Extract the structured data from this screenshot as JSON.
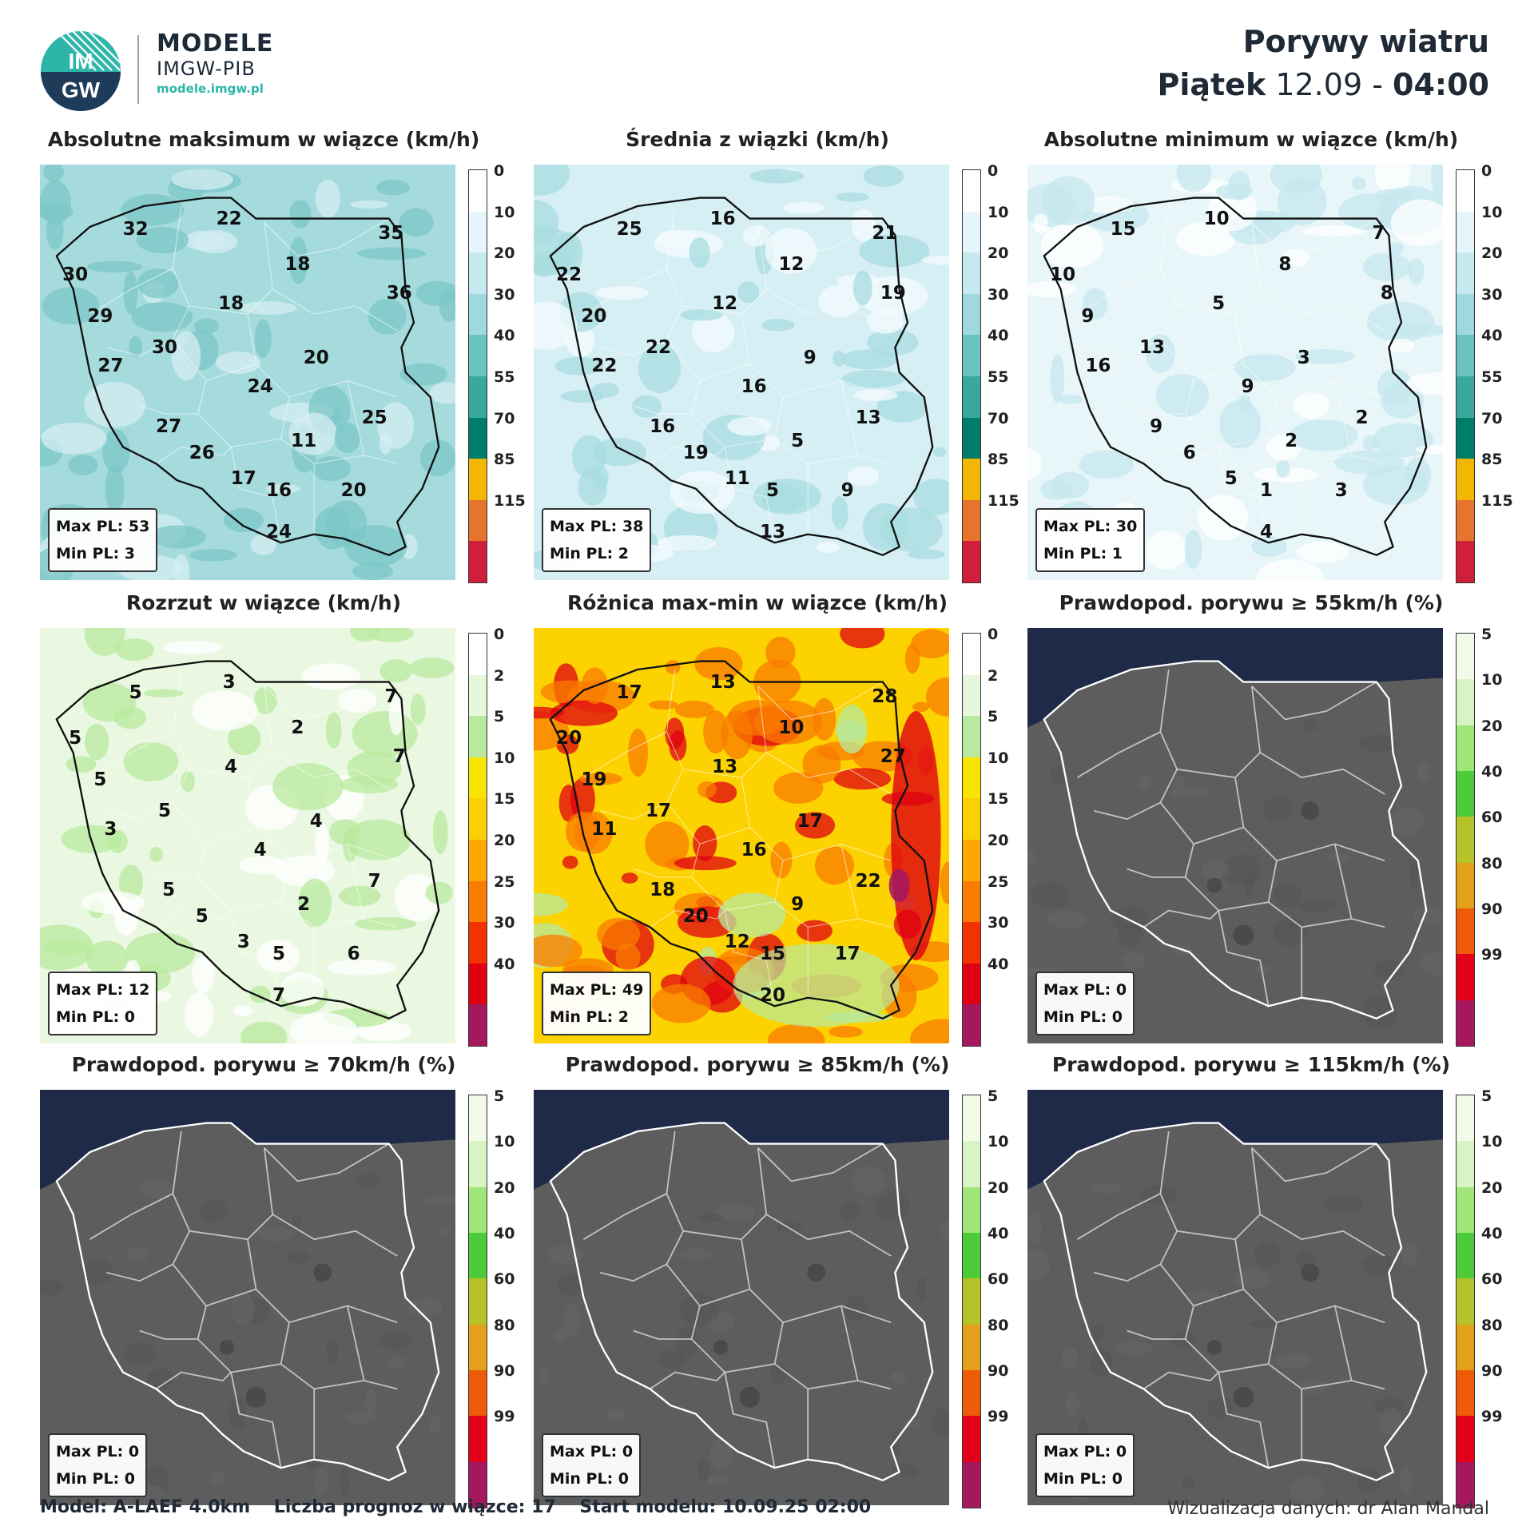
{
  "header": {
    "brand_title": "MODELE",
    "brand_subtitle": "IMGW-PIB",
    "brand_url": "modele.imgw.pl",
    "logo_text": "IMGW",
    "title": "Porywy wiatru",
    "day": "Piątek",
    "date": "12.09",
    "separator": "-",
    "time": "04:00"
  },
  "scales": {
    "wind": {
      "labels": [
        "0",
        "10",
        "20",
        "30",
        "40",
        "55",
        "70",
        "85",
        "115"
      ],
      "colors": [
        "#ffffff",
        "#e6f5fb",
        "#c6e9f0",
        "#9fd8de",
        "#6bc3c0",
        "#39a89d",
        "#007d6a",
        "#f2b705",
        "#e6742d",
        "#cf1f3b"
      ]
    },
    "spread": {
      "labels": [
        "0",
        "2",
        "5",
        "10",
        "15",
        "20",
        "25",
        "30",
        "40"
      ],
      "colors": [
        "#ffffff",
        "#e7f7dc",
        "#b8e99e",
        "#f7e400",
        "#fbd000",
        "#fca800",
        "#f97b00",
        "#f23200",
        "#e00012",
        "#a5185e"
      ]
    },
    "prob": {
      "labels": [
        "5",
        "10",
        "20",
        "40",
        "60",
        "80",
        "90",
        "99"
      ],
      "colors": [
        "#f1fbe8",
        "#d8f3c4",
        "#9fe679",
        "#4ecb3a",
        "#b5c229",
        "#e3a11b",
        "#ee5c0a",
        "#e5001a",
        "#a5185e"
      ]
    }
  },
  "panels": [
    {
      "title": "Absolutne maksimum w wiązce (km/h)",
      "scale": "wind",
      "style": "wind",
      "base": "#a6dbdd",
      "blobs": "#7cc7c7",
      "blobs2": "#d4eef2",
      "max": "Max PL: 53",
      "min": "Min PL: 3",
      "values": [
        {
          "v": "22",
          "x": 0.455,
          "y": 0.13
        },
        {
          "v": "32",
          "x": 0.23,
          "y": 0.155
        },
        {
          "v": "35",
          "x": 0.845,
          "y": 0.165
        },
        {
          "v": "30",
          "x": 0.085,
          "y": 0.265
        },
        {
          "v": "18",
          "x": 0.62,
          "y": 0.24
        },
        {
          "v": "36",
          "x": 0.865,
          "y": 0.31
        },
        {
          "v": "29",
          "x": 0.145,
          "y": 0.365
        },
        {
          "v": "18",
          "x": 0.46,
          "y": 0.335
        },
        {
          "v": "30",
          "x": 0.3,
          "y": 0.44
        },
        {
          "v": "20",
          "x": 0.665,
          "y": 0.465
        },
        {
          "v": "27",
          "x": 0.17,
          "y": 0.485
        },
        {
          "v": "24",
          "x": 0.53,
          "y": 0.535
        },
        {
          "v": "25",
          "x": 0.805,
          "y": 0.61
        },
        {
          "v": "27",
          "x": 0.31,
          "y": 0.63
        },
        {
          "v": "11",
          "x": 0.635,
          "y": 0.665
        },
        {
          "v": "26",
          "x": 0.39,
          "y": 0.695
        },
        {
          "v": "17",
          "x": 0.49,
          "y": 0.755
        },
        {
          "v": "16",
          "x": 0.575,
          "y": 0.785
        },
        {
          "v": "20",
          "x": 0.755,
          "y": 0.785
        },
        {
          "v": "24",
          "x": 0.575,
          "y": 0.885
        }
      ]
    },
    {
      "title": "Średnia z wiązki (km/h)",
      "scale": "wind",
      "style": "wind",
      "base": "#d6eff5",
      "blobs": "#a8dcdf",
      "blobs2": "#f4fbfd",
      "max": "Max PL: 38",
      "min": "Min PL: 2",
      "values": [
        {
          "v": "16",
          "x": 0.455,
          "y": 0.13
        },
        {
          "v": "25",
          "x": 0.23,
          "y": 0.155
        },
        {
          "v": "21",
          "x": 0.845,
          "y": 0.165
        },
        {
          "v": "22",
          "x": 0.085,
          "y": 0.265
        },
        {
          "v": "12",
          "x": 0.62,
          "y": 0.24
        },
        {
          "v": "19",
          "x": 0.865,
          "y": 0.31
        },
        {
          "v": "20",
          "x": 0.145,
          "y": 0.365
        },
        {
          "v": "12",
          "x": 0.46,
          "y": 0.335
        },
        {
          "v": "22",
          "x": 0.3,
          "y": 0.44
        },
        {
          "v": "9",
          "x": 0.665,
          "y": 0.465
        },
        {
          "v": "22",
          "x": 0.17,
          "y": 0.485
        },
        {
          "v": "16",
          "x": 0.53,
          "y": 0.535
        },
        {
          "v": "13",
          "x": 0.805,
          "y": 0.61
        },
        {
          "v": "16",
          "x": 0.31,
          "y": 0.63
        },
        {
          "v": "5",
          "x": 0.635,
          "y": 0.665
        },
        {
          "v": "19",
          "x": 0.39,
          "y": 0.695
        },
        {
          "v": "11",
          "x": 0.49,
          "y": 0.755
        },
        {
          "v": "5",
          "x": 0.575,
          "y": 0.785
        },
        {
          "v": "9",
          "x": 0.755,
          "y": 0.785
        },
        {
          "v": "13",
          "x": 0.575,
          "y": 0.885
        }
      ]
    },
    {
      "title": "Absolutne minimum w wiązce (km/h)",
      "scale": "wind",
      "style": "wind",
      "base": "#e8f6fa",
      "blobs": "#c4e7ee",
      "blobs2": "#ffffff",
      "max": "Max PL: 30",
      "min": "Min PL: 1",
      "values": [
        {
          "v": "10",
          "x": 0.455,
          "y": 0.13
        },
        {
          "v": "15",
          "x": 0.23,
          "y": 0.155
        },
        {
          "v": "7",
          "x": 0.845,
          "y": 0.165
        },
        {
          "v": "10",
          "x": 0.085,
          "y": 0.265
        },
        {
          "v": "8",
          "x": 0.62,
          "y": 0.24
        },
        {
          "v": "8",
          "x": 0.865,
          "y": 0.31
        },
        {
          "v": "9",
          "x": 0.145,
          "y": 0.365
        },
        {
          "v": "5",
          "x": 0.46,
          "y": 0.335
        },
        {
          "v": "13",
          "x": 0.3,
          "y": 0.44
        },
        {
          "v": "3",
          "x": 0.665,
          "y": 0.465
        },
        {
          "v": "16",
          "x": 0.17,
          "y": 0.485
        },
        {
          "v": "9",
          "x": 0.53,
          "y": 0.535
        },
        {
          "v": "2",
          "x": 0.805,
          "y": 0.61
        },
        {
          "v": "9",
          "x": 0.31,
          "y": 0.63
        },
        {
          "v": "2",
          "x": 0.635,
          "y": 0.665
        },
        {
          "v": "6",
          "x": 0.39,
          "y": 0.695
        },
        {
          "v": "5",
          "x": 0.49,
          "y": 0.755
        },
        {
          "v": "1",
          "x": 0.575,
          "y": 0.785
        },
        {
          "v": "3",
          "x": 0.755,
          "y": 0.785
        },
        {
          "v": "4",
          "x": 0.575,
          "y": 0.885
        }
      ]
    },
    {
      "title": "Rozrzut w wiązce (km/h)",
      "scale": "spread",
      "style": "spread",
      "base": "#eaf8e2",
      "blobs": "#b8e99e",
      "blobs2": "#ffffff",
      "max": "Max PL: 12",
      "min": "Min PL: 0",
      "values": [
        {
          "v": "3",
          "x": 0.455,
          "y": 0.13
        },
        {
          "v": "5",
          "x": 0.23,
          "y": 0.155
        },
        {
          "v": "7",
          "x": 0.845,
          "y": 0.165
        },
        {
          "v": "5",
          "x": 0.085,
          "y": 0.265
        },
        {
          "v": "2",
          "x": 0.62,
          "y": 0.24
        },
        {
          "v": "7",
          "x": 0.865,
          "y": 0.31
        },
        {
          "v": "5",
          "x": 0.145,
          "y": 0.365
        },
        {
          "v": "4",
          "x": 0.46,
          "y": 0.335
        },
        {
          "v": "5",
          "x": 0.3,
          "y": 0.44
        },
        {
          "v": "4",
          "x": 0.665,
          "y": 0.465
        },
        {
          "v": "3",
          "x": 0.17,
          "y": 0.485
        },
        {
          "v": "4",
          "x": 0.53,
          "y": 0.535
        },
        {
          "v": "7",
          "x": 0.805,
          "y": 0.61
        },
        {
          "v": "5",
          "x": 0.31,
          "y": 0.63
        },
        {
          "v": "2",
          "x": 0.635,
          "y": 0.665
        },
        {
          "v": "5",
          "x": 0.39,
          "y": 0.695
        },
        {
          "v": "3",
          "x": 0.49,
          "y": 0.755
        },
        {
          "v": "5",
          "x": 0.575,
          "y": 0.785
        },
        {
          "v": "6",
          "x": 0.755,
          "y": 0.785
        },
        {
          "v": "7",
          "x": 0.575,
          "y": 0.885
        }
      ]
    },
    {
      "title": "Różnica max-min w wiązce (km/h)",
      "scale": "spread",
      "style": "diff",
      "base": "#fcd200",
      "blobs": "#f97b00",
      "blobs2": "#e00012",
      "max": "Max PL: 49",
      "min": "Min PL: 2",
      "values": [
        {
          "v": "13",
          "x": 0.455,
          "y": 0.13
        },
        {
          "v": "17",
          "x": 0.23,
          "y": 0.155
        },
        {
          "v": "28",
          "x": 0.845,
          "y": 0.165
        },
        {
          "v": "20",
          "x": 0.085,
          "y": 0.265
        },
        {
          "v": "10",
          "x": 0.62,
          "y": 0.24
        },
        {
          "v": "27",
          "x": 0.865,
          "y": 0.31
        },
        {
          "v": "19",
          "x": 0.145,
          "y": 0.365
        },
        {
          "v": "13",
          "x": 0.46,
          "y": 0.335
        },
        {
          "v": "17",
          "x": 0.3,
          "y": 0.44
        },
        {
          "v": "17",
          "x": 0.665,
          "y": 0.465
        },
        {
          "v": "11",
          "x": 0.17,
          "y": 0.485
        },
        {
          "v": "16",
          "x": 0.53,
          "y": 0.535
        },
        {
          "v": "22",
          "x": 0.805,
          "y": 0.61
        },
        {
          "v": "18",
          "x": 0.31,
          "y": 0.63
        },
        {
          "v": "9",
          "x": 0.635,
          "y": 0.665
        },
        {
          "v": "20",
          "x": 0.39,
          "y": 0.695
        },
        {
          "v": "12",
          "x": 0.49,
          "y": 0.755
        },
        {
          "v": "15",
          "x": 0.575,
          "y": 0.785
        },
        {
          "v": "17",
          "x": 0.755,
          "y": 0.785
        },
        {
          "v": "20",
          "x": 0.575,
          "y": 0.885
        }
      ]
    },
    {
      "title": "Prawdopod. porywu ≥ 55km/h (%)",
      "scale": "prob",
      "style": "prob",
      "base": "#5d5d5d",
      "blobs": "#555555",
      "blobs2": "#666666",
      "max": "Max PL: 0",
      "min": "Min PL: 0",
      "values": []
    },
    {
      "title": "Prawdopod. porywu ≥ 70km/h (%)",
      "scale": "prob",
      "style": "prob",
      "base": "#5d5d5d",
      "blobs": "#555555",
      "blobs2": "#666666",
      "max": "Max PL: 0",
      "min": "Min PL: 0",
      "values": []
    },
    {
      "title": "Prawdopod. porywu ≥ 85km/h (%)",
      "scale": "prob",
      "style": "prob",
      "base": "#5d5d5d",
      "blobs": "#555555",
      "blobs2": "#666666",
      "max": "Max PL: 0",
      "min": "Min PL: 0",
      "values": []
    },
    {
      "title": "Prawdopod. porywu ≥ 115km/h (%)",
      "scale": "prob",
      "style": "prob",
      "base": "#5d5d5d",
      "blobs": "#555555",
      "blobs2": "#666666",
      "max": "Max PL: 0",
      "min": "Min PL: 0",
      "values": []
    }
  ],
  "footer": {
    "model": "Model: A-LAEF 4.0km",
    "members": "Liczba prognoz w wiązce: 17",
    "start": "Start modelu: 10.09.25  02:00",
    "credit": "Wizualizacja danych: dr Alan Mandal"
  }
}
